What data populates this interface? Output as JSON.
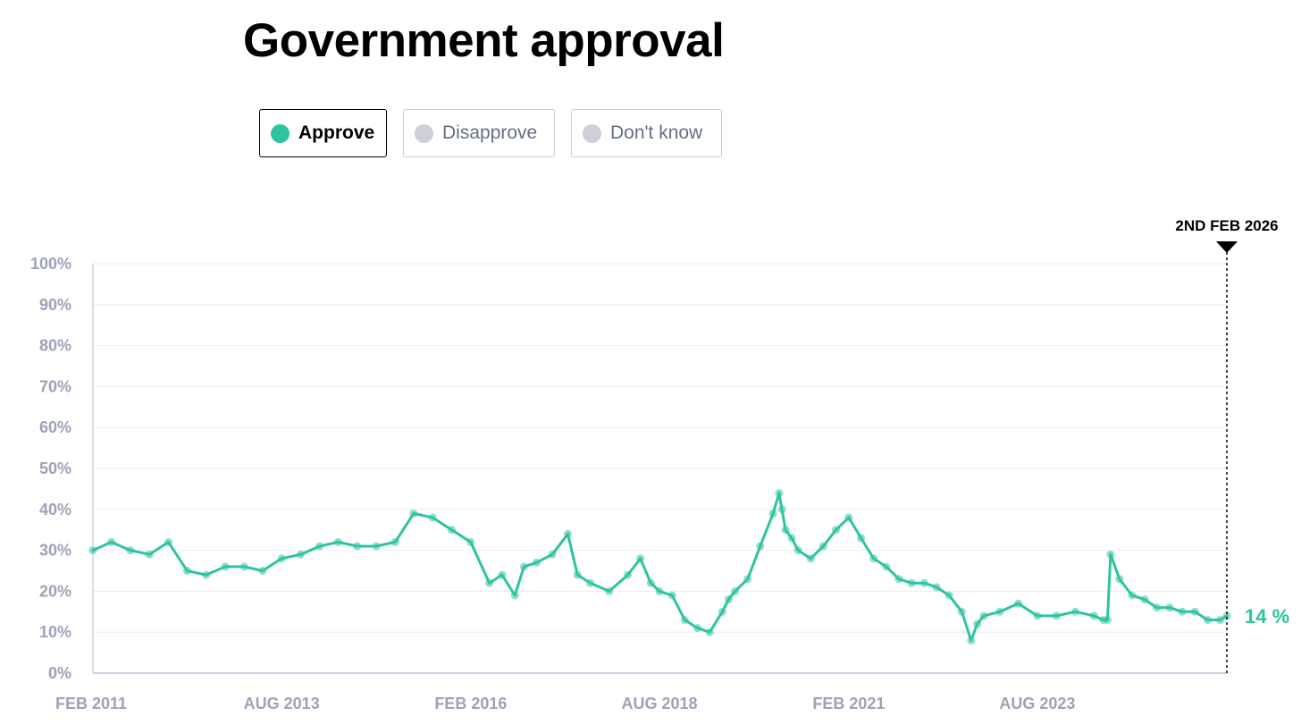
{
  "title": "Government approval",
  "legend": {
    "items": [
      {
        "label": "Approve",
        "color": "#2ec4a0",
        "active": true
      },
      {
        "label": "Disapprove",
        "color": "#cdd0d9",
        "active": false
      },
      {
        "label": "Don't know",
        "color": "#cdd0d9",
        "active": false
      }
    ]
  },
  "colors": {
    "series": "#2ec4a0",
    "grid": "#eeeeef",
    "axis_text": "#9ea2b6",
    "axis_line": "#b7bfd6"
  },
  "marker": {
    "label": "2ND FEB 2026",
    "date": "2026-02-02"
  },
  "last_value_label": "14 %",
  "chart_data": {
    "type": "line",
    "title": "Government approval",
    "xlabel": "",
    "ylabel": "",
    "ylim": [
      0,
      100
    ],
    "xlim": [
      "2011-02-01",
      "2026-02-02"
    ],
    "y_ticks": [
      0,
      10,
      20,
      30,
      40,
      50,
      60,
      70,
      80,
      90,
      100
    ],
    "y_tick_labels": [
      "0%",
      "10%",
      "20%",
      "30%",
      "40%",
      "50%",
      "60%",
      "70%",
      "80%",
      "90%",
      "100%"
    ],
    "x_ticks": [
      "2011-02-01",
      "2013-08-01",
      "2016-02-01",
      "2018-08-01",
      "2021-02-01",
      "2023-08-01"
    ],
    "x_tick_labels": [
      "FEB 2011",
      "AUG 2013",
      "FEB 2016",
      "AUG 2018",
      "FEB 2021",
      "AUG 2023"
    ],
    "grid": true,
    "legend_position": "top-left",
    "series": [
      {
        "name": "Approve",
        "x": [
          "2011-02-01",
          "2011-05-01",
          "2011-08-01",
          "2011-11-01",
          "2012-02-01",
          "2012-05-01",
          "2012-08-01",
          "2012-11-01",
          "2013-02-01",
          "2013-05-01",
          "2013-08-01",
          "2013-11-01",
          "2014-02-01",
          "2014-05-01",
          "2014-08-01",
          "2014-11-01",
          "2015-02-01",
          "2015-05-01",
          "2015-08-01",
          "2015-11-01",
          "2016-02-01",
          "2016-05-01",
          "2016-07-01",
          "2016-09-01",
          "2016-10-15",
          "2016-12-15",
          "2017-03-01",
          "2017-05-15",
          "2017-07-01",
          "2017-09-01",
          "2017-12-01",
          "2018-03-01",
          "2018-05-01",
          "2018-06-20",
          "2018-08-01",
          "2018-10-01",
          "2018-12-01",
          "2019-02-01",
          "2019-04-01",
          "2019-06-01",
          "2019-07-01",
          "2019-08-01",
          "2019-10-01",
          "2019-12-01",
          "2020-02-01",
          "2020-03-01",
          "2020-03-15",
          "2020-04-01",
          "2020-05-01",
          "2020-06-01",
          "2020-08-01",
          "2020-10-01",
          "2020-12-01",
          "2021-02-01",
          "2021-04-01",
          "2021-06-01",
          "2021-08-01",
          "2021-10-01",
          "2021-12-01",
          "2022-02-01",
          "2022-04-01",
          "2022-06-01",
          "2022-08-01",
          "2022-09-15",
          "2022-10-15",
          "2022-11-15",
          "2023-02-01",
          "2023-05-01",
          "2023-08-01",
          "2023-11-01",
          "2024-02-01",
          "2024-05-01",
          "2024-06-15",
          "2024-07-05",
          "2024-07-20",
          "2024-09-01",
          "2024-11-01",
          "2025-01-01",
          "2025-03-01",
          "2025-05-01",
          "2025-07-01",
          "2025-09-01",
          "2025-11-01",
          "2026-01-01",
          "2026-02-02"
        ],
        "values": [
          30,
          32,
          30,
          29,
          32,
          25,
          24,
          26,
          26,
          25,
          28,
          29,
          31,
          32,
          31,
          31,
          32,
          39,
          38,
          35,
          32,
          22,
          24,
          19,
          26,
          27,
          29,
          34,
          24,
          22,
          20,
          24,
          28,
          22,
          20,
          19,
          13,
          11,
          10,
          15,
          18,
          20,
          23,
          31,
          39,
          44,
          40,
          35,
          33,
          30,
          28,
          31,
          35,
          38,
          33,
          28,
          26,
          23,
          22,
          22,
          21,
          19,
          15,
          8,
          12,
          14,
          15,
          17,
          14,
          14,
          15,
          14,
          13,
          13,
          29,
          23,
          19,
          18,
          16,
          16,
          15,
          15,
          13,
          13,
          14
        ]
      }
    ]
  }
}
